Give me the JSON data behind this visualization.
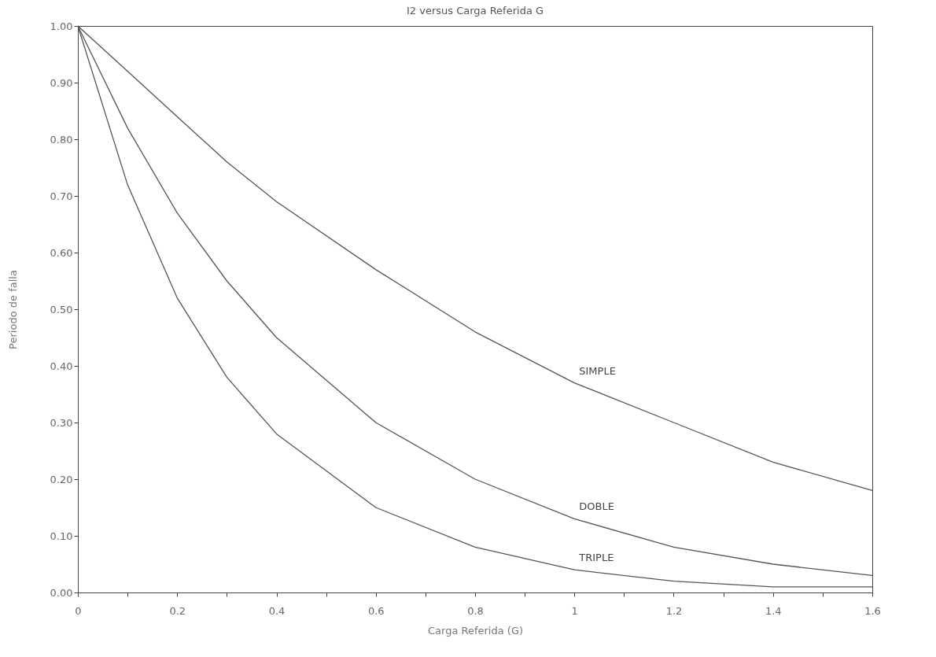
{
  "chart_data": {
    "type": "line",
    "title": "I2 versus Carga Referida G",
    "xlabel": "Carga Referida (G)",
    "ylabel": "Periodo de falla",
    "xlim": [
      0,
      1.6
    ],
    "ylim": [
      0,
      1
    ],
    "xticks": [
      0,
      {
        "value": 0.1,
        "label": null
      },
      0.2,
      {
        "value": 0.3,
        "label": null
      },
      0.4,
      {
        "value": 0.5,
        "label": null
      },
      0.6,
      {
        "value": 0.7,
        "label": null
      },
      0.8,
      {
        "value": 0.9,
        "label": null
      },
      1,
      {
        "value": 1.1,
        "label": null
      },
      1.2,
      {
        "value": 1.3,
        "label": null
      },
      1.4,
      {
        "value": 1.5,
        "label": null
      },
      1.6
    ],
    "yticks": [
      {
        "value": 0,
        "label": "0.00"
      },
      {
        "value": 0.1,
        "label": "0.10"
      },
      {
        "value": 0.2,
        "label": "0.20"
      },
      {
        "value": 0.3,
        "label": "0.30"
      },
      {
        "value": 0.4,
        "label": "0.40"
      },
      {
        "value": 0.5,
        "label": "0.50"
      },
      {
        "value": 0.6,
        "label": "0.60"
      },
      {
        "value": 0.7,
        "label": "0.70"
      },
      {
        "value": 0.8,
        "label": "0.80"
      },
      {
        "value": 0.9,
        "label": "0.90"
      },
      {
        "value": 1,
        "label": "1.00"
      }
    ],
    "grid": false,
    "legend": false,
    "marker": "none",
    "line_style": "solid",
    "series": [
      {
        "name": "SIMPLE",
        "color": "#555555",
        "x": [
          0,
          0.1,
          0.2,
          0.3,
          0.4,
          0.6,
          0.8,
          1.0,
          1.2,
          1.4,
          1.6
        ],
        "values": [
          1,
          0.92,
          0.84,
          0.76,
          0.69,
          0.57,
          0.46,
          0.37,
          0.3,
          0.23,
          0.18
        ]
      },
      {
        "name": "DOBLE",
        "color": "#555555",
        "x": [
          0,
          0.1,
          0.2,
          0.3,
          0.4,
          0.6,
          0.8,
          1.0,
          1.2,
          1.4,
          1.6
        ],
        "values": [
          1,
          0.82,
          0.67,
          0.55,
          0.45,
          0.3,
          0.2,
          0.13,
          0.08,
          0.05,
          0.03
        ]
      },
      {
        "name": "TRIPLE",
        "color": "#555555",
        "x": [
          0,
          0.1,
          0.2,
          0.3,
          0.4,
          0.6,
          0.8,
          1.0,
          1.2,
          1.4,
          1.6
        ],
        "values": [
          1,
          0.72,
          0.52,
          0.38,
          0.28,
          0.15,
          0.08,
          0.04,
          0.02,
          0.01,
          0.01
        ]
      }
    ]
  }
}
